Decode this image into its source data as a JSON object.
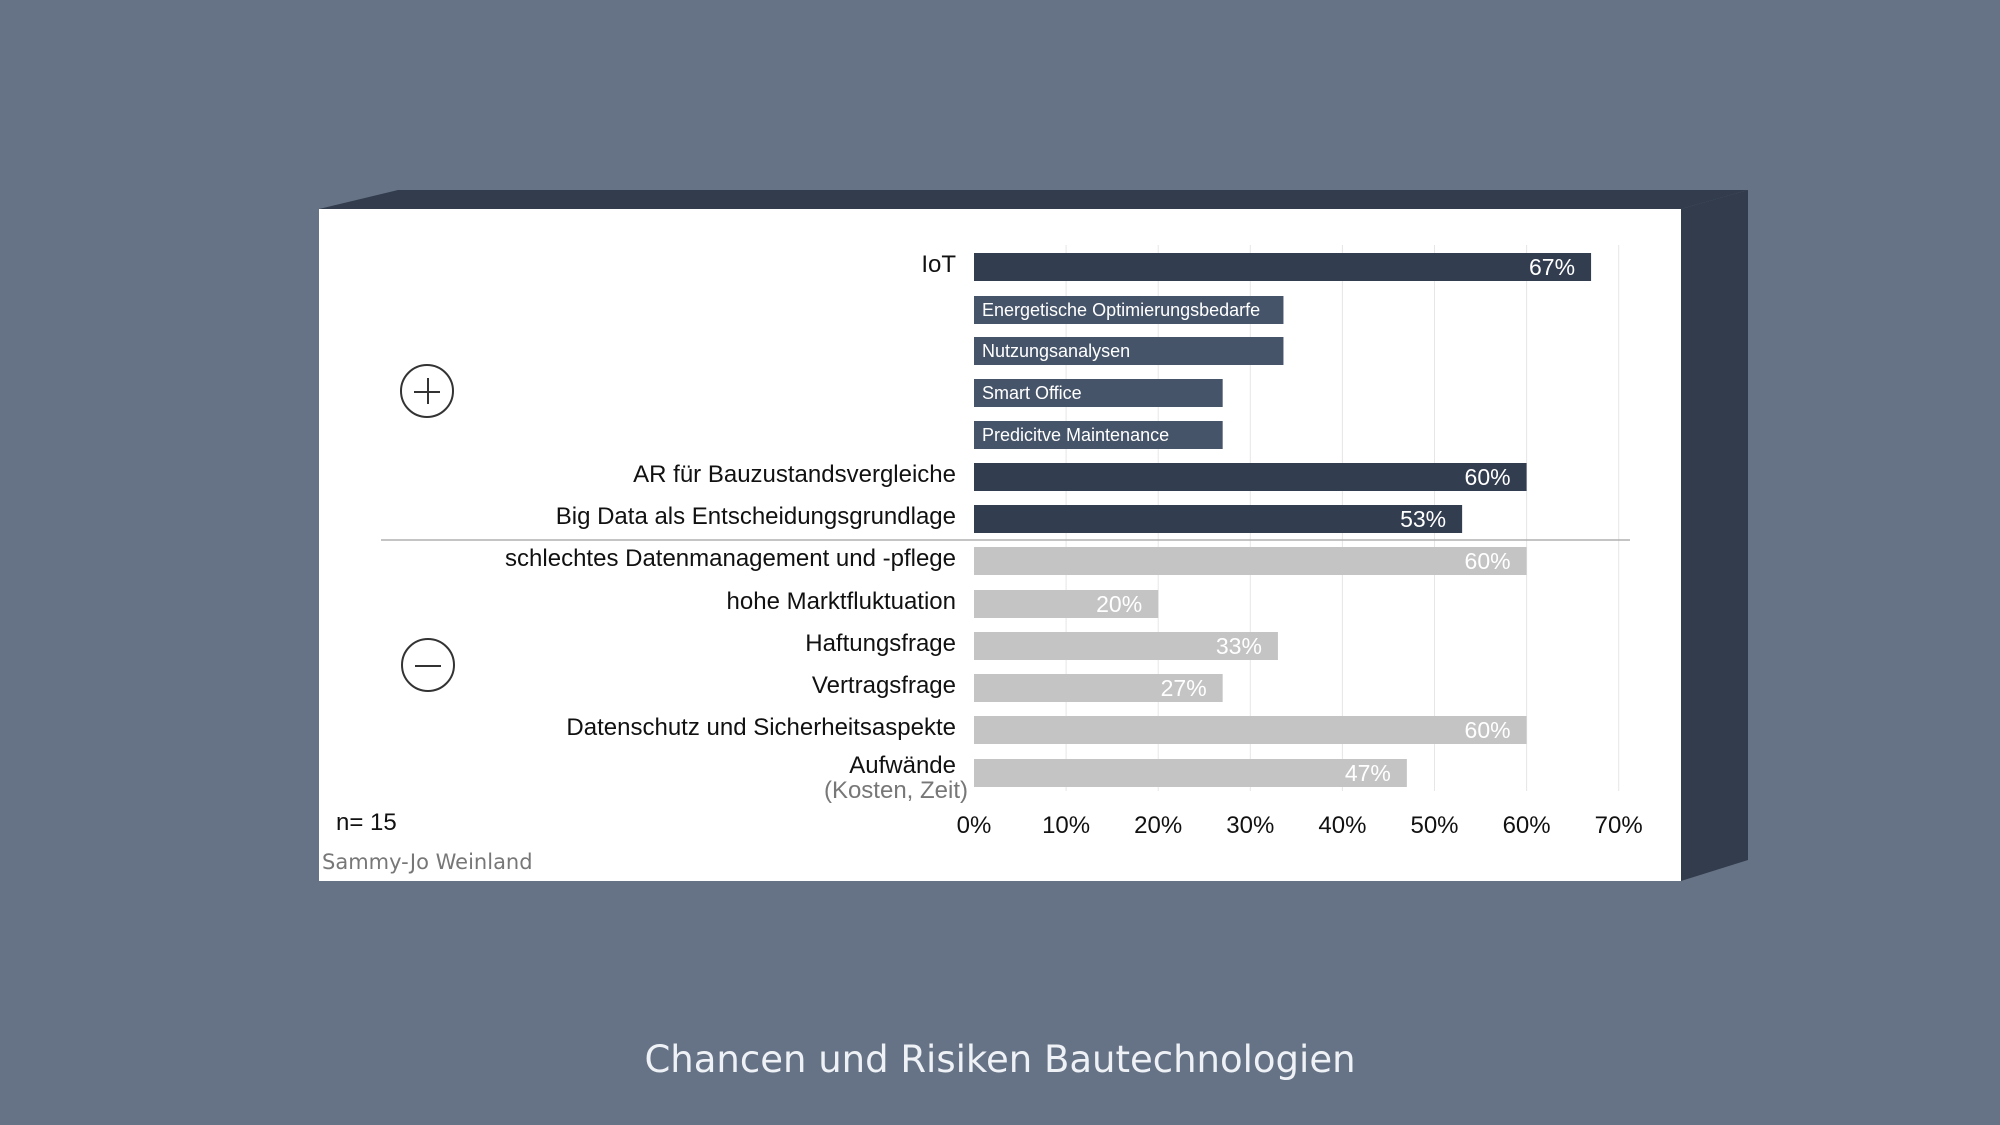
{
  "caption": "Chancen und Risiken Bautechnologien",
  "author": "Sammy-Jo Weinland",
  "sample_note": "n= 15",
  "colors": {
    "background": "#667386",
    "box_side": "#323c4d",
    "chance_bar": "#333d50",
    "subtopic_bar": "#465469",
    "risk_bar": "#c4c4c4",
    "grid": "#e6e6e6"
  },
  "groups": {
    "chances_icon": "plus-circle-icon",
    "risks_icon": "minus-circle-icon"
  },
  "chart_data": {
    "type": "bar",
    "orientation": "horizontal",
    "xlim": [
      0,
      70
    ],
    "x_ticks": [
      "0%",
      "10%",
      "20%",
      "30%",
      "40%",
      "50%",
      "60%",
      "70%"
    ],
    "grid": true,
    "rows": [
      {
        "label": "IoT",
        "value": 67,
        "value_label": "67%",
        "kind": "chance"
      },
      {
        "label": "Energetische Optimierungsbedarfe",
        "value": 33.6,
        "kind": "subtopic"
      },
      {
        "label": "Nutzungsanalysen",
        "value": 33.6,
        "kind": "subtopic"
      },
      {
        "label": "Smart Office",
        "value": 27,
        "kind": "subtopic"
      },
      {
        "label": "Predicitve Maintenance",
        "value": 27,
        "kind": "subtopic"
      },
      {
        "label": "AR für Bauzustandsvergleiche",
        "value": 60,
        "value_label": "60%",
        "kind": "chance"
      },
      {
        "label": "Big Data als Entscheidungsgrundlage",
        "value": 53,
        "value_label": "53%",
        "kind": "chance"
      },
      {
        "label": "schlechtes Datenmanagement und -pflege",
        "value": 60,
        "value_label": "60%",
        "kind": "risk"
      },
      {
        "label": "hohe Marktfluktuation",
        "value": 20,
        "value_label": "20%",
        "kind": "risk"
      },
      {
        "label": "Haftungsfrage",
        "value": 33,
        "value_label": "33%",
        "kind": "risk"
      },
      {
        "label": "Vertragsfrage",
        "value": 27,
        "value_label": "27%",
        "kind": "risk"
      },
      {
        "label": "Datenschutz und Sicherheitsaspekte",
        "value": 60,
        "value_label": "60%",
        "kind": "risk"
      },
      {
        "label": "Aufwände",
        "sublabel": "(Kosten, Zeit)",
        "value": 47,
        "value_label": "47%",
        "kind": "risk"
      }
    ]
  }
}
